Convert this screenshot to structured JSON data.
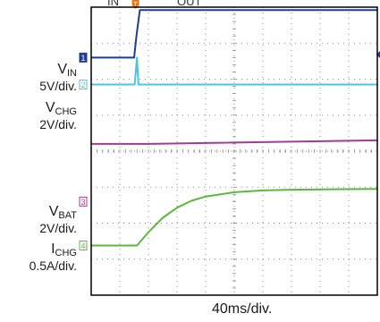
{
  "header_fragments": [
    "IN",
    "OUT"
  ],
  "channels": [
    {
      "id": "1",
      "name_main": "V",
      "name_sub": "IN",
      "scale": "5V/div.",
      "color": "#1f3f95"
    },
    {
      "id": "2",
      "name_main": "V",
      "name_sub": "CHG",
      "scale": "2V/div.",
      "color": "#4bc6dd"
    },
    {
      "id": "3",
      "name_main": "V",
      "name_sub": "BAT",
      "scale": "2V/div.",
      "color": "#a23a96"
    },
    {
      "id": "4",
      "name_main": "I",
      "name_sub": "CHG",
      "scale": "0.5A/div.",
      "color": "#5cb83d"
    }
  ],
  "trigger_marker": "T",
  "timebase": "40ms/div.",
  "chart_data": {
    "type": "line",
    "x_divisions": 10,
    "y_divisions": 8,
    "x_unit": "div",
    "grid": true,
    "trigger_time_div": 1.55,
    "series": [
      {
        "name": "VIN",
        "values": [
          [
            0,
            6.6
          ],
          [
            1.5,
            6.6
          ],
          [
            1.58,
            7.2
          ],
          [
            1.7,
            7.92
          ],
          [
            10,
            7.92
          ]
        ]
      },
      {
        "name": "VCHG",
        "values": [
          [
            0,
            5.85
          ],
          [
            1.52,
            5.85
          ],
          [
            1.6,
            6.6
          ],
          [
            1.65,
            5.85
          ],
          [
            10,
            5.85
          ]
        ]
      },
      {
        "name": "VBAT",
        "values": [
          [
            0,
            4.2
          ],
          [
            2,
            4.2
          ],
          [
            10,
            4.3
          ]
        ]
      },
      {
        "name": "ICHG",
        "values": [
          [
            0,
            1.38
          ],
          [
            1.6,
            1.38
          ],
          [
            2,
            1.75
          ],
          [
            2.5,
            2.15
          ],
          [
            3,
            2.43
          ],
          [
            3.5,
            2.62
          ],
          [
            4,
            2.74
          ],
          [
            5,
            2.86
          ],
          [
            6,
            2.91
          ],
          [
            7,
            2.93
          ],
          [
            8,
            2.94
          ],
          [
            10,
            2.95
          ]
        ]
      }
    ]
  }
}
